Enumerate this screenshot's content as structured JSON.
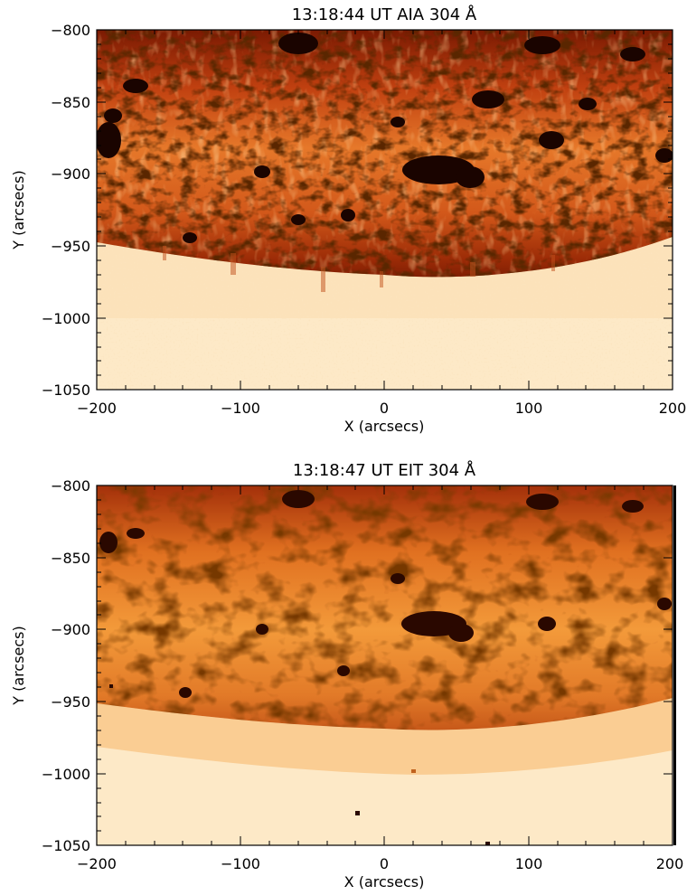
{
  "panels": [
    {
      "title": "13:18:44 UT AIA 304 Å",
      "xlabel": "X (arcsecs)",
      "ylabel": "Y (arcsecs)",
      "x_ticks": [
        "−200",
        "−100",
        "0",
        "100",
        "200"
      ],
      "y_ticks": [
        "−800",
        "−850",
        "−900",
        "−950",
        "−1000",
        "−1050"
      ],
      "x_range": [
        -200,
        200
      ],
      "y_range": [
        -1050,
        -800
      ],
      "colormap": "red-orange-yellow (solar 304 Å)",
      "limb_y": -955
    },
    {
      "title": "13:18:47 UT EIT 304 Å",
      "xlabel": "X (arcsecs)",
      "ylabel": "Y (arcsecs)",
      "x_ticks": [
        "−200",
        "−100",
        "0",
        "100",
        "200"
      ],
      "y_ticks": [
        "−800",
        "−850",
        "−900",
        "−950",
        "−1000",
        "−1050"
      ],
      "x_range": [
        -200,
        200
      ],
      "y_range": [
        -1050,
        -800
      ],
      "colormap": "red-orange-yellow (solar 304 Å), pixelated",
      "limb_y": -955
    }
  ],
  "colors": {
    "disk_dark": "#1a0400",
    "disk_mid": "#b23a08",
    "disk_bright": "#f08a2a",
    "off_limb": "#fde9c7",
    "off_limb_edge": "#f9c88a"
  }
}
